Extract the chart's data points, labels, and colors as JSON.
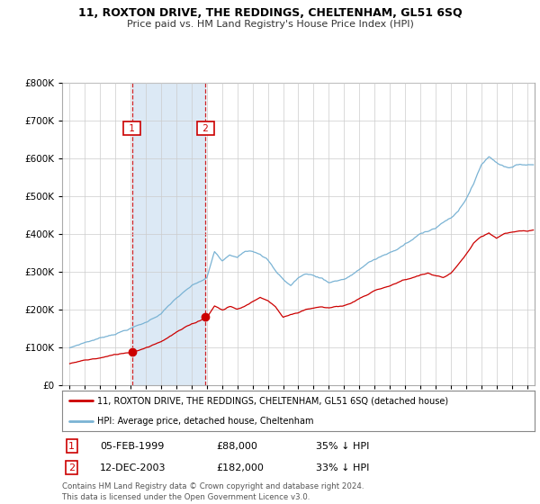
{
  "title": "11, ROXTON DRIVE, THE REDDINGS, CHELTENHAM, GL51 6SQ",
  "subtitle": "Price paid vs. HM Land Registry's House Price Index (HPI)",
  "hpi_color": "#7ab3d4",
  "price_color": "#cc0000",
  "legend_label_price": "11, ROXTON DRIVE, THE REDDINGS, CHELTENHAM, GL51 6SQ (detached house)",
  "legend_label_hpi": "HPI: Average price, detached house, Cheltenham",
  "table_row1": [
    "1",
    "05-FEB-1999",
    "£88,000",
    "35% ↓ HPI"
  ],
  "table_row2": [
    "2",
    "12-DEC-2003",
    "£182,000",
    "33% ↓ HPI"
  ],
  "footnote": "Contains HM Land Registry data © Crown copyright and database right 2024.\nThis data is licensed under the Open Government Licence v3.0.",
  "t1": 1999.083,
  "t2": 2003.917,
  "p1": 88000,
  "p2": 182000,
  "ylim": [
    0,
    800000
  ],
  "xlim_left": 1994.5,
  "xlim_right": 2025.5,
  "background_color": "#ffffff",
  "grid_color": "#cccccc",
  "shade_color": "#dce9f5",
  "label_box_color": "#cc0000"
}
